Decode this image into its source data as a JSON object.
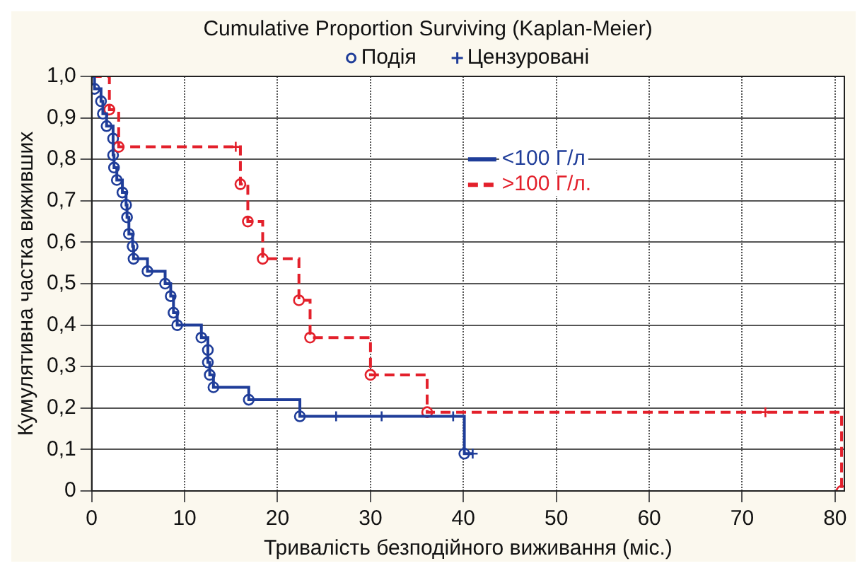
{
  "chart_data": {
    "type": "step",
    "title": "Cumulative Proportion Surviving (Kaplan-Meier)",
    "xlabel": "Тривалість безподійного виживання (міс.)",
    "ylabel": "Кумулятивна частка виживших",
    "xlim": [
      0,
      81
    ],
    "xticks": [
      0,
      10,
      20,
      30,
      40,
      50,
      60,
      70,
      80
    ],
    "ylim": [
      0,
      1.0
    ],
    "yticks": [
      {
        "value": 0,
        "label": "0"
      },
      {
        "value": 0.1,
        "label": "0,1"
      },
      {
        "value": 0.2,
        "label": "0,2"
      },
      {
        "value": 0.3,
        "label": "0,3"
      },
      {
        "value": 0.4,
        "label": "0,4"
      },
      {
        "value": 0.5,
        "label": "0,5"
      },
      {
        "value": 0.6,
        "label": "0,6"
      },
      {
        "value": 0.7,
        "label": "0,7"
      },
      {
        "value": 0.8,
        "label": "0,8"
      },
      {
        "value": 0.9,
        "label": "0,9"
      },
      {
        "value": 1.0,
        "label": "1,0"
      }
    ],
    "grid": true,
    "legend": "right",
    "series": [
      {
        "name": "<100 Г/л",
        "type": "step",
        "color": "#1f3d99",
        "line_style": "solid",
        "x": [
          0,
          0.3,
          1.0,
          1.2,
          1.6,
          2.3,
          2.3,
          2.4,
          2.7,
          3.3,
          3.7,
          3.8,
          4.0,
          4.4,
          4.5,
          6.0,
          7.9,
          8.5,
          8.8,
          9.2,
          11.8,
          12.5,
          12.5,
          12.7,
          13.1,
          16.9,
          22.4,
          40.1,
          41.0
        ],
        "values": [
          1.0,
          0.97,
          0.94,
          0.91,
          0.88,
          0.85,
          0.81,
          0.78,
          0.75,
          0.72,
          0.69,
          0.66,
          0.62,
          0.59,
          0.56,
          0.53,
          0.5,
          0.47,
          0.43,
          0.4,
          0.37,
          0.34,
          0.31,
          0.28,
          0.25,
          0.22,
          0.18,
          0.09,
          0.09
        ]
      },
      {
        "name": ">100 Г/л.",
        "type": "step",
        "color": "#e3202b",
        "line_style": "dashed",
        "x": [
          0,
          1.9,
          2.9,
          16.0,
          16.8,
          18.4,
          22.3,
          23.5,
          30.0,
          36.1,
          80.7
        ],
        "values": [
          1.0,
          0.92,
          0.83,
          0.74,
          0.65,
          0.56,
          0.46,
          0.37,
          0.28,
          0.19,
          0
        ]
      },
      {
        "name": "Подія",
        "type": "scatter",
        "marker": "circle",
        "color": "#1f3d99",
        "x": [
          0.3,
          1.0,
          1.2,
          1.6,
          2.3,
          2.3,
          2.4,
          2.7,
          3.3,
          3.7,
          3.8,
          4.0,
          4.4,
          4.5,
          6.0,
          7.9,
          8.5,
          8.8,
          9.2,
          11.8,
          12.5,
          12.5,
          12.7,
          13.1,
          16.9,
          22.4,
          40.1,
          1.9,
          2.9,
          16.0,
          16.8,
          18.4,
          22.3,
          23.5,
          30.0,
          36.1,
          80.7
        ],
        "values": [
          0.97,
          0.94,
          0.91,
          0.88,
          0.85,
          0.81,
          0.78,
          0.75,
          0.72,
          0.69,
          0.66,
          0.62,
          0.59,
          0.56,
          0.53,
          0.5,
          0.47,
          0.43,
          0.4,
          0.37,
          0.34,
          0.31,
          0.28,
          0.25,
          0.22,
          0.18,
          0.09,
          0.92,
          0.83,
          0.74,
          0.65,
          0.56,
          0.46,
          0.37,
          0.28,
          0.19,
          0
        ],
        "colors": [
          "#1f3d99",
          "#1f3d99",
          "#1f3d99",
          "#1f3d99",
          "#1f3d99",
          "#1f3d99",
          "#1f3d99",
          "#1f3d99",
          "#1f3d99",
          "#1f3d99",
          "#1f3d99",
          "#1f3d99",
          "#1f3d99",
          "#1f3d99",
          "#1f3d99",
          "#1f3d99",
          "#1f3d99",
          "#1f3d99",
          "#1f3d99",
          "#1f3d99",
          "#1f3d99",
          "#1f3d99",
          "#1f3d99",
          "#1f3d99",
          "#1f3d99",
          "#1f3d99",
          "#1f3d99",
          "#e3202b",
          "#e3202b",
          "#e3202b",
          "#e3202b",
          "#e3202b",
          "#e3202b",
          "#e3202b",
          "#e3202b",
          "#e3202b",
          "#e3202b"
        ]
      },
      {
        "name": "Цензуровані",
        "type": "scatter",
        "marker": "cross",
        "color": "#1f3d99",
        "x": [
          26.3,
          31.2,
          38.9,
          41.0,
          15.5,
          72.5
        ],
        "values": [
          0.18,
          0.18,
          0.18,
          0.09,
          0.83,
          0.19
        ],
        "colors": [
          "#1f3d99",
          "#1f3d99",
          "#1f3d99",
          "#1f3d99",
          "#e3202b",
          "#e3202b"
        ]
      }
    ]
  }
}
